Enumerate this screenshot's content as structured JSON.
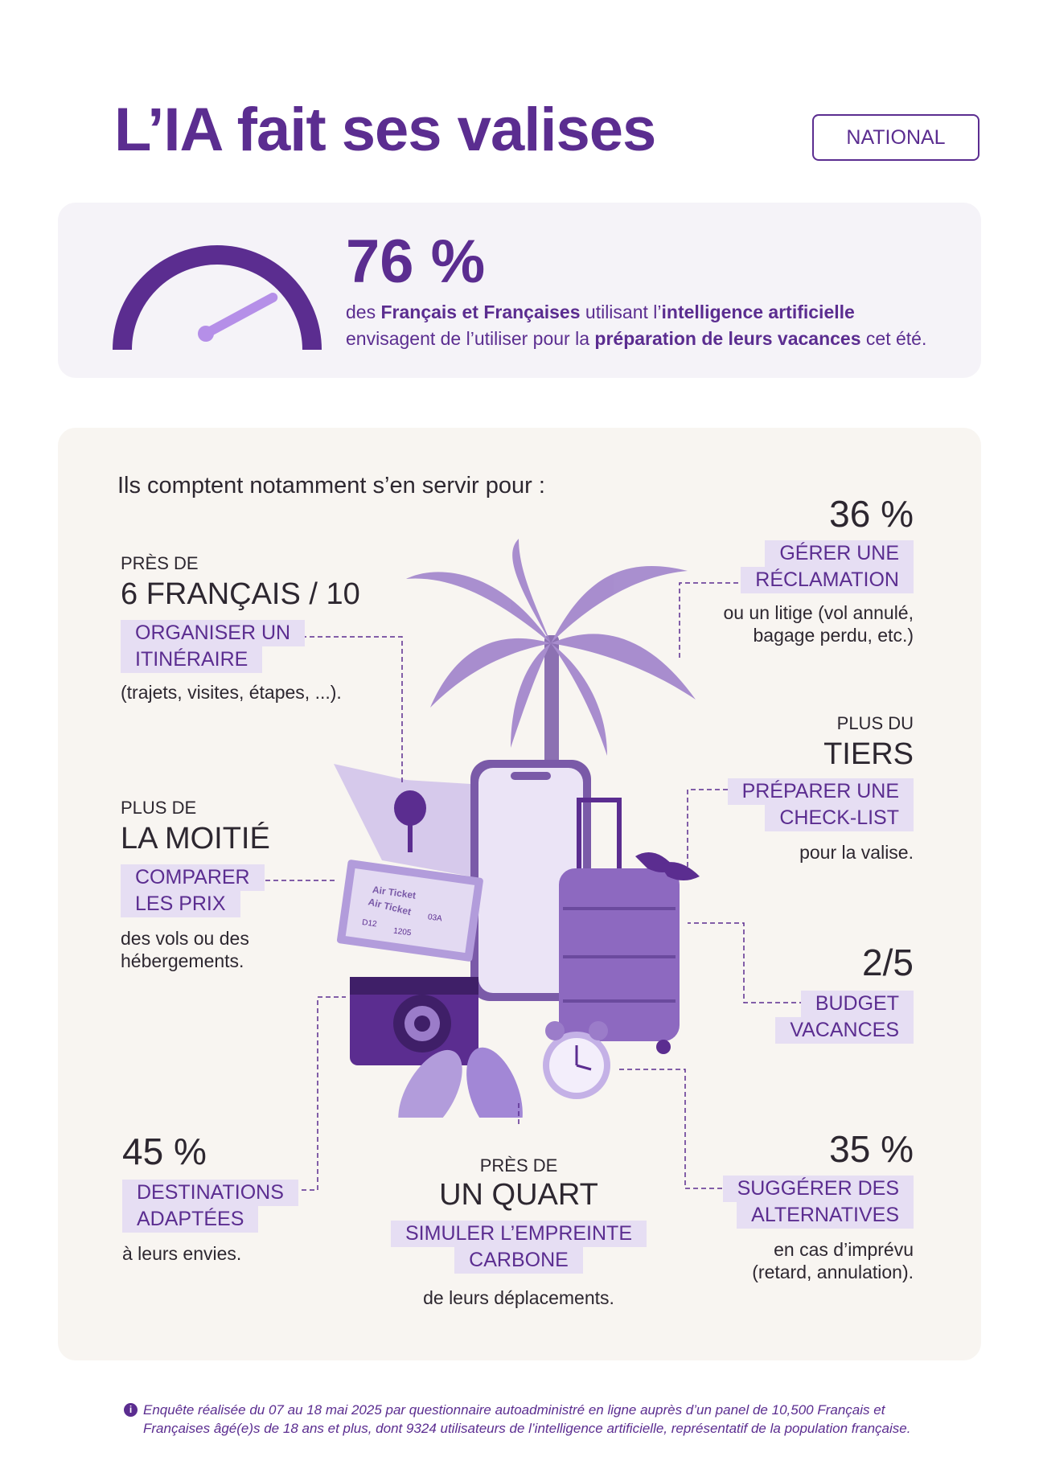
{
  "header": {
    "title": "L’IA fait ses valises",
    "badge": "NATIONAL"
  },
  "stat": {
    "value": "76 %",
    "gauge_level": 0.76,
    "line1_a": "des ",
    "line1_b": "Français et Françaises",
    "line1_c": " utilisant l’",
    "line1_d": "intelligence artificielle",
    "line2_a": "envisagent de l’utiliser pour la ",
    "line2_b": "préparation de leurs vacances",
    "line2_c": " cet été."
  },
  "uses": {
    "intro": "Ils comptent notamment s’en servir pour :",
    "itinerary": {
      "top": "PRÈS DE",
      "headline": "6 FRANÇAIS / 10",
      "tag1": "ORGANISER UN",
      "tag2": "ITINÉRAIRE",
      "desc": "(trajets, visites, étapes, ...)."
    },
    "prices": {
      "top": "PLUS DE",
      "headline": "LA MOITIÉ",
      "tag1": "COMPARER",
      "tag2": "LES PRIX",
      "desc1": "des vols ou des",
      "desc2": "hébergements."
    },
    "destinations": {
      "headline": "45 %",
      "tag1": "DESTINATIONS",
      "tag2": "ADAPTÉES",
      "desc": "à leurs envies."
    },
    "carbon": {
      "top": "PRÈS DE",
      "headline": "UN QUART",
      "tag1": "SIMULER L’EMPREINTE",
      "tag2": "CARBONE",
      "desc": "de leurs déplacements."
    },
    "claim": {
      "headline": "36 %",
      "tag1": "GÉRER UNE",
      "tag2": "RÉCLAMATION",
      "desc1": "ou un litige (vol annulé,",
      "desc2": "bagage perdu, etc.)"
    },
    "checklist": {
      "top": "PLUS DU",
      "headline": "TIERS",
      "tag1": "PRÉPARER UNE",
      "tag2": "CHECK-LIST",
      "desc": "pour la valise."
    },
    "budget": {
      "headline": "2/5",
      "tag1": "BUDGET",
      "tag2": "VACANCES"
    },
    "alternatives": {
      "headline": "35 %",
      "tag1": "SUGGÉRER DES",
      "tag2": "ALTERNATIVES",
      "desc1": "en cas d’imprévu",
      "desc2": "(retard, annulation)."
    }
  },
  "illustration": {
    "ticket_label": "Air Ticket",
    "ticket_label_2": "Air Ticket",
    "ticket_code_1": "D12",
    "ticket_code_2": "1205",
    "ticket_code_3": "03A"
  },
  "footnote": {
    "icon": "info-icon",
    "line1": "Enquête réalisée du 07 au 18 mai 2025 par questionnaire autoadministré en ligne auprès d’un panel de 10,500 Français et",
    "line2": "Françaises âgé(e)s de 18 ans et plus, dont 9324 utilisateurs de l’intelligence artificielle, représentatif de la population française."
  },
  "colors": {
    "accent": "#5b2d90",
    "accent_light": "#b58fe8",
    "tag_bg": "#e6def3",
    "card_light": "#f5f3f8",
    "card_beige": "#f8f5f1"
  }
}
